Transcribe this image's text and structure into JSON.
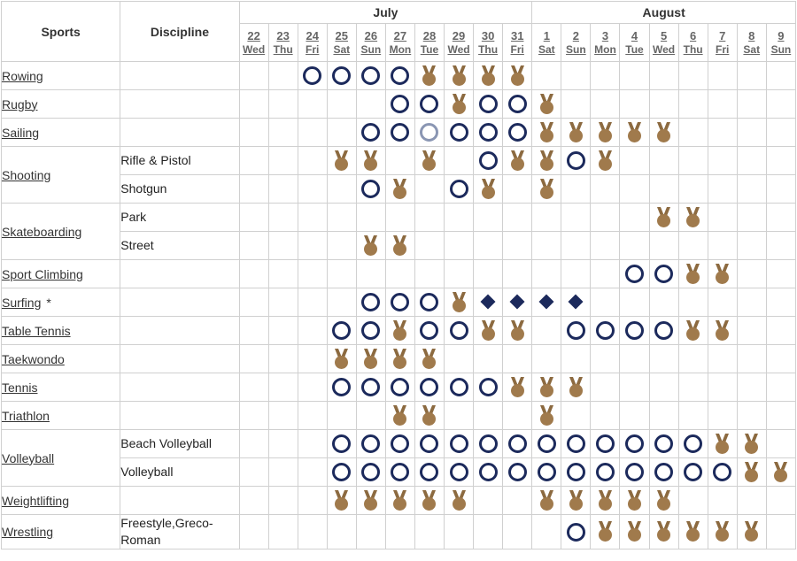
{
  "header": {
    "sports_label": "Sports",
    "discipline_label": "Discipline",
    "months": [
      {
        "label": "July",
        "span": 10
      },
      {
        "label": "August",
        "span": 9
      }
    ],
    "days": [
      {
        "num": "22",
        "dow": "Wed"
      },
      {
        "num": "23",
        "dow": "Thu"
      },
      {
        "num": "24",
        "dow": "Fri"
      },
      {
        "num": "25",
        "dow": "Sat"
      },
      {
        "num": "26",
        "dow": "Sun"
      },
      {
        "num": "27",
        "dow": "Mon"
      },
      {
        "num": "28",
        "dow": "Tue"
      },
      {
        "num": "29",
        "dow": "Wed"
      },
      {
        "num": "30",
        "dow": "Thu"
      },
      {
        "num": "31",
        "dow": "Fri"
      },
      {
        "num": "1",
        "dow": "Sat"
      },
      {
        "num": "2",
        "dow": "Sun"
      },
      {
        "num": "3",
        "dow": "Mon"
      },
      {
        "num": "4",
        "dow": "Tue"
      },
      {
        "num": "5",
        "dow": "Wed"
      },
      {
        "num": "6",
        "dow": "Thu"
      },
      {
        "num": "7",
        "dow": "Fri"
      },
      {
        "num": "8",
        "dow": "Sat"
      },
      {
        "num": "9",
        "dow": "Sun"
      }
    ]
  },
  "legend_symbols": {
    "O": "competition-day",
    "L": "competition-day-light",
    "M": "medal-event",
    "D": "diamond-day"
  },
  "colors": {
    "ring": "#1c2a5c",
    "ring_light": "#8a96b3",
    "medal": "#a07a4c",
    "medal_ribbon": "#8c6a40",
    "diamond": "#1c2a5c"
  },
  "rows": [
    {
      "sport": "Rowing",
      "disc": "",
      "cells": "..OOOOMMMM........."
    },
    {
      "sport": "Rugby",
      "disc": "",
      "cells": ".....OOMOOM........"
    },
    {
      "sport": "Sailing",
      "disc": "",
      "cells": "....OOLOOOMMMMM...."
    },
    {
      "sport": "Shooting",
      "span": 2,
      "disc": "Rifle & Pistol",
      "cells": "...MM.M.OMMOM......"
    },
    {
      "disc": "Shotgun",
      "cells": "....OM.OM.M........"
    },
    {
      "sport": "Skateboarding",
      "span": 2,
      "disc": "Park",
      "cells": "..............MM..."
    },
    {
      "disc": "Street",
      "cells": "....MM............."
    },
    {
      "sport": "Sport Climbing",
      "disc": "",
      "cells": ".............OOMM.."
    },
    {
      "sport": "Surfing",
      "mark": "*",
      "disc": "",
      "cells": "....OOOMDDDD......."
    },
    {
      "sport": "Table Tennis",
      "disc": "",
      "cells": "...OOMOOMM.OOOOMM.."
    },
    {
      "sport": "Taekwondo",
      "disc": "",
      "cells": "...MMMM............"
    },
    {
      "sport": "Tennis",
      "disc": "",
      "cells": "...OOOOOOMMM......."
    },
    {
      "sport": "Triathlon",
      "disc": "",
      "cells": ".....MM...M........"
    },
    {
      "sport": "Volleyball",
      "span": 2,
      "disc": "Beach Volleyball",
      "cells": "...OOOOOOOOOOOOOMM."
    },
    {
      "disc": "Volleyball",
      "cells": "...OOOOOOOOOOOOOOMM"
    },
    {
      "sport": "Weightlifting",
      "disc": "",
      "cells": "...MMMMM..MMMMM...."
    },
    {
      "sport": "Wrestling",
      "disc": "Freestyle,Greco-Roman",
      "cells": "...........OMMMMMM."
    }
  ]
}
